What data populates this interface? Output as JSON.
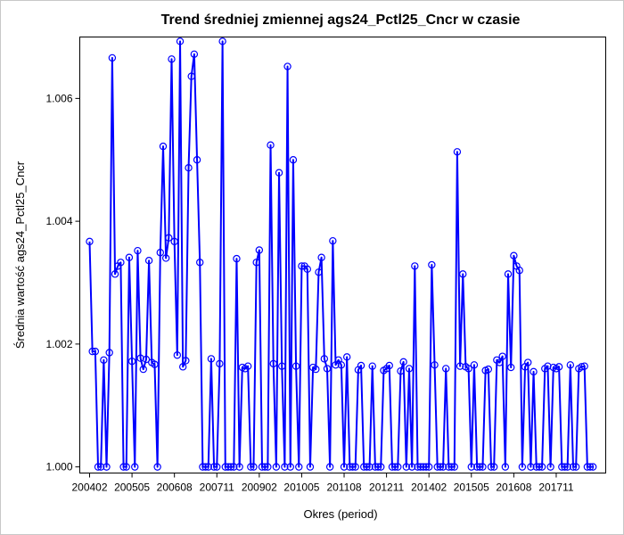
{
  "chart_data": {
    "type": "line",
    "title": "Trend średniej zmiennej ags24_Pctl25_Cncr w czasie",
    "xlabel": "Okres (period)",
    "ylabel": "Średnia wartość ags24_Pctl25_Cncr",
    "x_tick_labels": [
      "200402",
      "200505",
      "200608",
      "200711",
      "200902",
      "201005",
      "201108",
      "201211",
      "201402",
      "201505",
      "201608",
      "201711"
    ],
    "y_tick_labels": [
      "1.000",
      "1.002",
      "1.004",
      "1.006"
    ],
    "y_ticks": [
      1.0,
      1.002,
      1.004,
      1.006
    ],
    "xlim": [
      2004.0,
      2018.92
    ],
    "ylim": [
      0.9999,
      1.007
    ],
    "grid": false,
    "legend": "none",
    "line_color": "#0000ff",
    "marker": "open-circle",
    "series": [
      {
        "x": [
          2004.0,
          2004.083,
          2004.167,
          2004.25,
          2004.333,
          2004.417,
          2004.5,
          2004.583,
          2004.667,
          2004.75,
          2004.833,
          2004.917,
          2005.0,
          2005.083,
          2005.167,
          2005.25,
          2005.333,
          2005.417,
          2005.5,
          2005.583,
          2005.667,
          2005.75,
          2005.833,
          2005.917,
          2006.0,
          2006.083,
          2006.167,
          2006.25,
          2006.333,
          2006.417,
          2006.5,
          2006.583,
          2006.667,
          2006.75,
          2006.833,
          2006.917,
          2007.0,
          2007.083,
          2007.167,
          2007.25,
          2007.333,
          2007.417,
          2007.5,
          2007.583,
          2007.667,
          2007.75,
          2007.833,
          2007.917,
          2008.0,
          2008.083,
          2008.167,
          2008.25,
          2008.333,
          2008.417,
          2008.5,
          2008.583,
          2008.667,
          2008.75,
          2008.833,
          2008.917,
          2009.0,
          2009.083,
          2009.167,
          2009.25,
          2009.333,
          2009.417,
          2009.5,
          2009.583,
          2009.667,
          2009.75,
          2009.833,
          2009.917,
          2010.0,
          2010.083,
          2010.167,
          2010.25,
          2010.333,
          2010.417,
          2010.5,
          2010.583,
          2010.667,
          2010.75,
          2010.833,
          2010.917,
          2011.0,
          2011.083,
          2011.167,
          2011.25,
          2011.333,
          2011.417,
          2011.5,
          2011.583,
          2011.667,
          2011.75,
          2011.833,
          2011.917,
          2012.0,
          2012.083,
          2012.167,
          2012.25,
          2012.333,
          2012.417,
          2012.5,
          2012.583,
          2012.667,
          2012.75,
          2012.833,
          2012.917,
          2013.0,
          2013.083,
          2013.167,
          2013.25,
          2013.333,
          2013.417,
          2013.5,
          2013.583,
          2013.667,
          2013.75,
          2013.833,
          2013.917,
          2014.0,
          2014.083,
          2014.167,
          2014.25,
          2014.333,
          2014.417,
          2014.5,
          2014.583,
          2014.667,
          2014.75,
          2014.833,
          2014.917,
          2015.0,
          2015.083,
          2015.167,
          2015.25,
          2015.333,
          2015.417,
          2015.5,
          2015.583,
          2015.667,
          2015.75,
          2015.833,
          2015.917,
          2016.0,
          2016.083,
          2016.167,
          2016.25,
          2016.333,
          2016.417,
          2016.5,
          2016.583,
          2016.667,
          2016.75,
          2016.833,
          2016.917,
          2017.0,
          2017.083,
          2017.167,
          2017.25,
          2017.333,
          2017.417,
          2017.5,
          2017.583,
          2017.667,
          2017.75,
          2017.833,
          2017.917,
          2018.0,
          2018.083,
          2018.167,
          2018.25,
          2018.333,
          2018.417,
          2018.5,
          2018.583,
          2018.667,
          2018.75,
          2018.833
        ],
        "values": [
          1.00367,
          1.00188,
          1.00188,
          1.0,
          1.0,
          1.00174,
          1.0,
          1.00186,
          1.00666,
          1.00314,
          1.00327,
          1.00333,
          1.0,
          1.0,
          1.00341,
          1.00172,
          1.0,
          1.00352,
          1.00177,
          1.00159,
          1.00175,
          1.00336,
          1.0017,
          1.00167,
          1.0,
          1.00349,
          1.00522,
          1.0034,
          1.00373,
          1.00664,
          1.00367,
          1.00182,
          1.00693,
          1.00163,
          1.00173,
          1.00487,
          1.00636,
          1.00672,
          1.005,
          1.00333,
          1.0,
          1.0,
          1.0,
          1.00176,
          1.0,
          1.0,
          1.00168,
          1.00693,
          1.0,
          1.0,
          1.0,
          1.0,
          1.00339,
          1.0,
          1.00162,
          1.0016,
          1.00164,
          1.0,
          1.0,
          1.00333,
          1.00353,
          1.0,
          1.0,
          1.0,
          1.00524,
          1.00168,
          1.0,
          1.00479,
          1.00164,
          1.0,
          1.00652,
          1.0,
          1.005,
          1.00164,
          1.0,
          1.00327,
          1.00327,
          1.00322,
          1.0,
          1.00162,
          1.00159,
          1.00317,
          1.00341,
          1.00176,
          1.0016,
          1.0,
          1.00368,
          1.00166,
          1.00174,
          1.00166,
          1.0,
          1.00179,
          1.0,
          1.0,
          1.0,
          1.00158,
          1.00165,
          1.0,
          1.0,
          1.0,
          1.00164,
          1.0,
          1.0,
          1.0,
          1.00157,
          1.0016,
          1.00165,
          1.0,
          1.0,
          1.0,
          1.00156,
          1.00171,
          1.0,
          1.0016,
          1.0,
          1.00327,
          1.0,
          1.0,
          1.0,
          1.0,
          1.0,
          1.00329,
          1.00166,
          1.0,
          1.0,
          1.0,
          1.0016,
          1.0,
          1.0,
          1.0,
          1.00513,
          1.00164,
          1.00314,
          1.00163,
          1.0016,
          1.0,
          1.00166,
          1.0,
          1.0,
          1.0,
          1.00157,
          1.00159,
          1.0,
          1.0,
          1.00174,
          1.0017,
          1.0018,
          1.0,
          1.00314,
          1.00162,
          1.00344,
          1.00327,
          1.0032,
          1.0,
          1.00163,
          1.0017,
          1.0,
          1.00155,
          1.0,
          1.0,
          1.0,
          1.0016,
          1.00164,
          1.0,
          1.00162,
          1.0016,
          1.00163,
          1.0,
          1.0,
          1.0,
          1.00166,
          1.0,
          1.0,
          1.0016,
          1.00163,
          1.00164,
          1.0,
          1.0,
          1.0
        ]
      }
    ]
  }
}
